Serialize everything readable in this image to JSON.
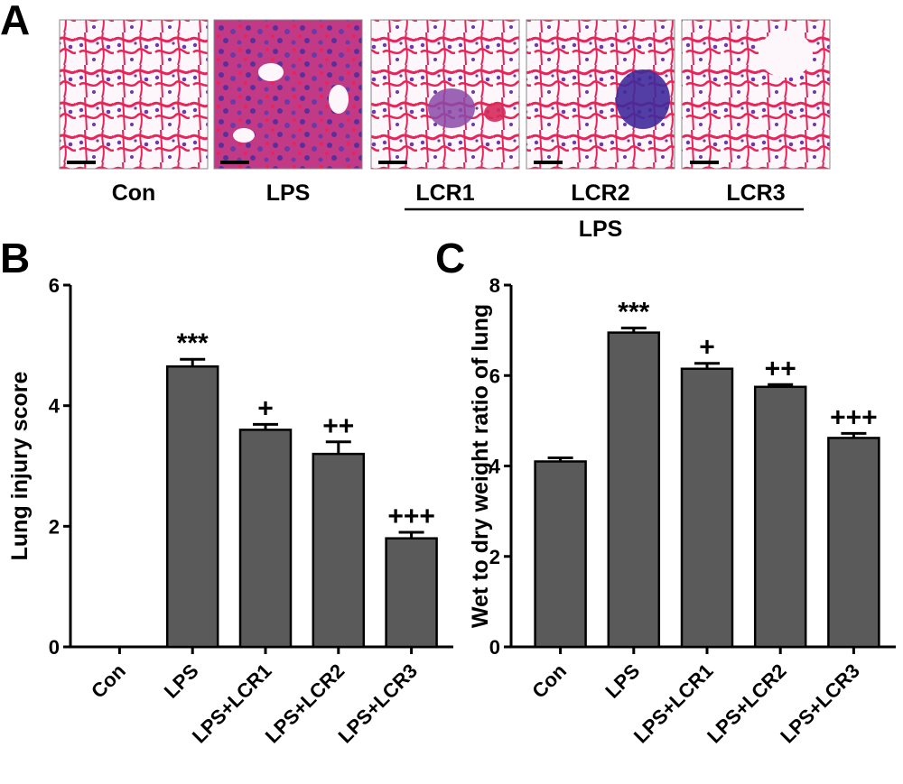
{
  "panels": {
    "a": "A",
    "b": "B",
    "c": "C"
  },
  "micrographs": {
    "labels": [
      "Con",
      "LPS",
      "LCR1",
      "LCR2",
      "LCR3"
    ],
    "group_label": "LPS"
  },
  "colors": {
    "bar": "#5a5a5a",
    "axis": "#000000",
    "stain_background": "#fdf6fa",
    "stain_eosin": "#e8245a",
    "stain_hematoxylin": "#6a3aa8"
  },
  "chart_data": [
    {
      "type": "bar",
      "panel": "B",
      "categories": [
        "Con",
        "LPS",
        "LPS+LCR1",
        "LPS+LCR2",
        "LPS+LCR3"
      ],
      "values": [
        0,
        4.65,
        3.6,
        3.2,
        1.8
      ],
      "errors": [
        0,
        0.12,
        0.09,
        0.2,
        0.1
      ],
      "annotations": [
        "",
        "***",
        "+",
        "++",
        "+++"
      ],
      "title": "",
      "xlabel": "",
      "ylabel": "Lung injury score",
      "ylim": [
        0,
        6
      ],
      "yticks": [
        0,
        2,
        4,
        6
      ],
      "grid": false
    },
    {
      "type": "bar",
      "panel": "C",
      "categories": [
        "Con",
        "LPS",
        "LPS+LCR1",
        "LPS+LCR2",
        "LPS+LCR3"
      ],
      "values": [
        4.1,
        6.95,
        6.15,
        5.75,
        4.62
      ],
      "errors": [
        0.08,
        0.1,
        0.12,
        0.05,
        0.1
      ],
      "annotations": [
        "",
        "***",
        "+",
        "++",
        "+++"
      ],
      "title": "",
      "xlabel": "",
      "ylabel": "Wet to dry weight ratio of lung",
      "ylim": [
        0,
        8
      ],
      "yticks": [
        0,
        2,
        4,
        6,
        8
      ],
      "grid": false
    }
  ]
}
